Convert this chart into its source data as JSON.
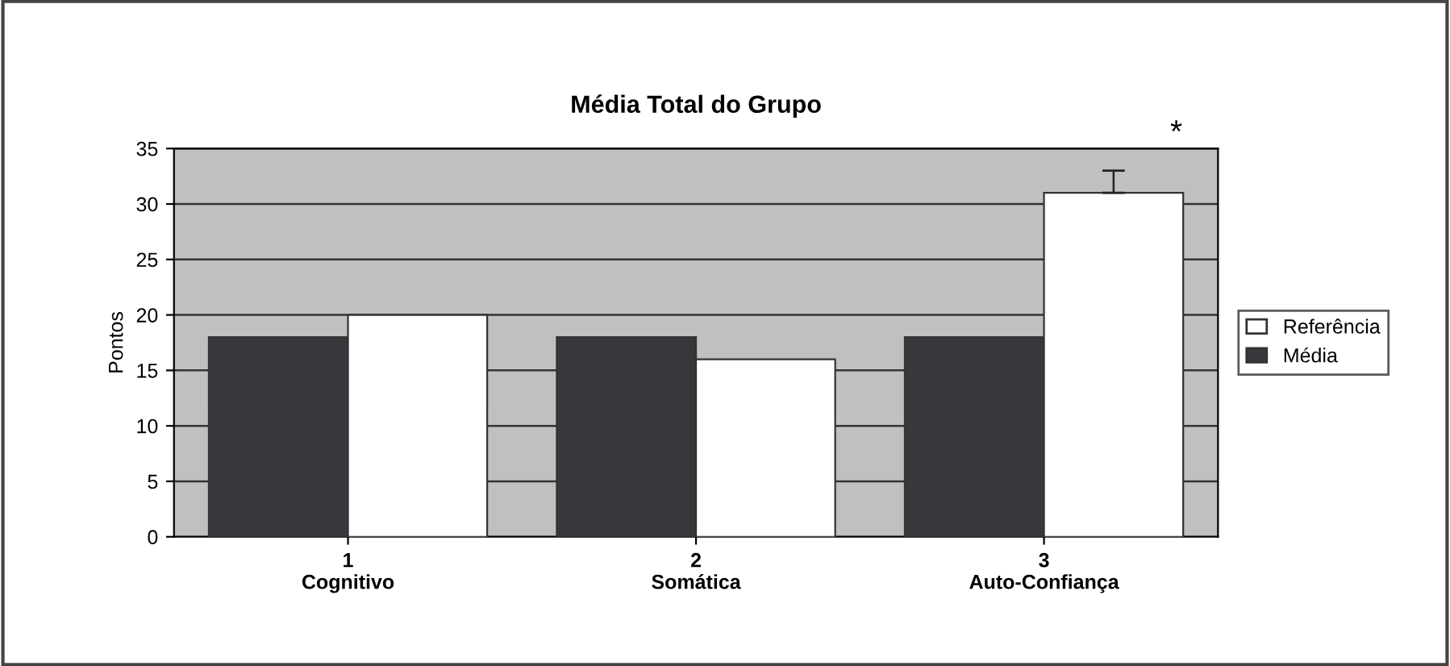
{
  "chart_data": {
    "type": "bar",
    "title": "Média Total do Grupo",
    "ylabel": "Pontos",
    "categories": [
      "1\nCognitivo",
      "2\nSomática",
      "3\nAuto-Confiança"
    ],
    "series": [
      {
        "name": "Média",
        "color": "#38383c",
        "values": [
          18,
          18,
          18
        ]
      },
      {
        "name": "Referência",
        "color": "#ffffff",
        "values": [
          20,
          16,
          31
        ],
        "errors": [
          null,
          null,
          [
            31,
            33
          ]
        ]
      }
    ],
    "ylim": [
      0,
      35
    ],
    "yticks": [
      0,
      5,
      10,
      15,
      20,
      25,
      30,
      35
    ],
    "grid": "y",
    "legend": "right",
    "annotations": [
      "*"
    ]
  }
}
